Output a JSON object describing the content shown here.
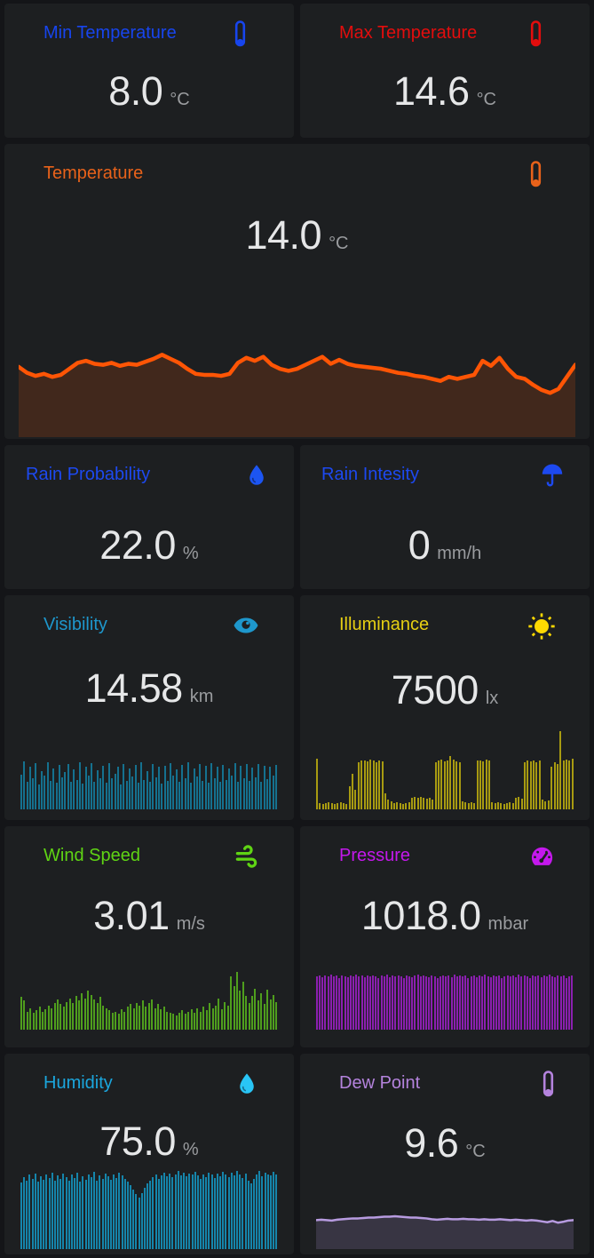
{
  "page": {
    "background": "#141518",
    "card_background": "#1d1f21",
    "value_color": "#e6e7e8",
    "unit_color": "#9a9c9f"
  },
  "cards": [
    {
      "id": "min_temperature",
      "title": "Min Temperature",
      "value": "8.0",
      "unit": "°C",
      "color": "#1745ee",
      "icon": "thermometer"
    },
    {
      "id": "max_temperature",
      "title": "Max Temperature",
      "value": "14.6",
      "unit": "°C",
      "color": "#e30d0d",
      "icon": "thermometer"
    },
    {
      "id": "temperature",
      "title": "Temperature",
      "value": "14.0",
      "unit": "°C",
      "color": "#e8621a",
      "icon": "thermometer",
      "chart": {
        "type": "area",
        "color": "#ff5505",
        "fill_opacity": 0.16,
        "values": [
          70,
          64,
          61,
          63,
          60,
          62,
          68,
          74,
          76,
          73,
          72,
          74,
          71,
          73,
          72,
          75,
          78,
          82,
          78,
          74,
          68,
          63,
          62,
          62,
          61,
          63,
          74,
          79,
          76,
          80,
          72,
          68,
          66,
          68,
          72,
          76,
          80,
          73,
          77,
          73,
          71,
          70,
          69,
          68,
          66,
          64,
          63,
          61,
          60,
          58,
          56,
          60,
          58,
          60,
          62,
          76,
          71,
          79,
          68,
          60,
          58,
          52,
          47,
          44,
          48,
          60,
          72
        ]
      }
    },
    {
      "id": "rain_probability",
      "title": "Rain Probability",
      "value": "22.0",
      "unit": "%",
      "color": "#1d49f0",
      "icon_color": "#1c55f2",
      "icon": "water-drop"
    },
    {
      "id": "rain_intensity",
      "title": "Rain Intesity",
      "value": "0",
      "unit": "mm/h",
      "color": "#1d49f0",
      "icon": "umbrella"
    },
    {
      "id": "visibility",
      "title": "Visibility",
      "value": "14.58",
      "unit": "km",
      "color": "#1e97cc",
      "icon": "eye",
      "chart": {
        "type": "bar",
        "color": "#15718f",
        "values": [
          72,
          100,
          58,
          88,
          64,
          96,
          52,
          80,
          70,
          98,
          60,
          86,
          55,
          92,
          66,
          78,
          95,
          58,
          84,
          62,
          99,
          54,
          88,
          70,
          96,
          58,
          82,
          64,
          90,
          56,
          97,
          65,
          75,
          88,
          52,
          95,
          60,
          85,
          68,
          92,
          55,
          98,
          62,
          80,
          58,
          94,
          66,
          88,
          54,
          90,
          60,
          96,
          70,
          84,
          58,
          92,
          64,
          98,
          56,
          86,
          68,
          94,
          60,
          90,
          55,
          96,
          65,
          88,
          58,
          92,
          62,
          85,
          70,
          97,
          57,
          90,
          64,
          94,
          60,
          87,
          66,
          95,
          58,
          91,
          63,
          89,
          70,
          93
        ]
      }
    },
    {
      "id": "illuminance",
      "title": "Illuminance",
      "value": "7500",
      "unit": "lx",
      "color": "#e6cf13",
      "icon_color": "#fdd902",
      "icon": "sun",
      "chart": {
        "type": "bar",
        "color": "#a89b11",
        "values": [
          65,
          8,
          7,
          8,
          9,
          8,
          7,
          8,
          9,
          8,
          7,
          30,
          45,
          25,
          60,
          62,
          63,
          61,
          64,
          62,
          60,
          63,
          61,
          20,
          12,
          10,
          8,
          9,
          8,
          7,
          8,
          9,
          15,
          16,
          15,
          16,
          15,
          14,
          15,
          13,
          60,
          62,
          64,
          61,
          63,
          68,
          64,
          61,
          60,
          10,
          9,
          8,
          9,
          8,
          62,
          63,
          61,
          64,
          62,
          9,
          8,
          9,
          8,
          7,
          8,
          9,
          8,
          15,
          16,
          14,
          60,
          62,
          61,
          63,
          60,
          62,
          12,
          10,
          11,
          55,
          60,
          58,
          100,
          62,
          64,
          63,
          65
        ]
      }
    },
    {
      "id": "wind_speed",
      "title": "Wind Speed",
      "value": "3.01",
      "unit": "m/s",
      "color": "#5fd414",
      "icon": "wind",
      "chart": {
        "type": "bar",
        "color": "#4f9e1d",
        "values": [
          55,
          48,
          30,
          35,
          28,
          32,
          38,
          30,
          34,
          40,
          36,
          44,
          50,
          42,
          38,
          46,
          52,
          44,
          56,
          48,
          60,
          52,
          64,
          58,
          50,
          44,
          54,
          40,
          36,
          32,
          28,
          30,
          26,
          34,
          30,
          38,
          42,
          36,
          44,
          40,
          48,
          38,
          44,
          50,
          36,
          42,
          34,
          38,
          30,
          28,
          26,
          24,
          28,
          32,
          26,
          30,
          34,
          28,
          36,
          30,
          38,
          32,
          44,
          36,
          40,
          52,
          34,
          46,
          40,
          88,
          72,
          95,
          64,
          80,
          56,
          44,
          56,
          68,
          48,
          60,
          42,
          66,
          50,
          58,
          46
        ]
      }
    },
    {
      "id": "pressure",
      "title": "Pressure",
      "value": "1018.0",
      "unit": "mbar",
      "color": "#c418ec",
      "icon": "gauge",
      "chart": {
        "type": "bar",
        "color": "#8b1fb0",
        "values": [
          96,
          98,
          95,
          99,
          97,
          100,
          96,
          98,
          94,
          99,
          97,
          95,
          98,
          96,
          100,
          97,
          99,
          95,
          98,
          96,
          99,
          97,
          94,
          98,
          96,
          100,
          95,
          99,
          97,
          98,
          96,
          94,
          99,
          97,
          95,
          98,
          100,
          96,
          99,
          97,
          95,
          98,
          96,
          94,
          97,
          99,
          96,
          98,
          95,
          100,
          97,
          99,
          96,
          98,
          94,
          97,
          99,
          95,
          98,
          96,
          100,
          97,
          95,
          99,
          96,
          98,
          94,
          97,
          99,
          96,
          98,
          95,
          100,
          97,
          99,
          96,
          94,
          98,
          97,
          99,
          95,
          98,
          96,
          100,
          97,
          95,
          99,
          96,
          98,
          94,
          97,
          99
        ]
      }
    },
    {
      "id": "humidity",
      "title": "Humidity",
      "value": "75.0",
      "unit": "%",
      "color": "#1ba6dd",
      "icon_color": "#29c5f6",
      "icon": "water-drop",
      "chart": {
        "type": "bar",
        "color": "#1585ab",
        "values": [
          85,
          92,
          88,
          95,
          90,
          97,
          86,
          93,
          89,
          96,
          91,
          98,
          87,
          94,
          90,
          97,
          92,
          88,
          95,
          91,
          98,
          86,
          93,
          89,
          96,
          92,
          99,
          88,
          94,
          90,
          97,
          93,
          89,
          96,
          91,
          98,
          94,
          90,
          86,
          82,
          76,
          70,
          66,
          72,
          78,
          84,
          88,
          92,
          96,
          90,
          94,
          98,
          93,
          97,
          92,
          96,
          100,
          94,
          98,
          93,
          97,
          95,
          99,
          94,
          90,
          96,
          92,
          98,
          95,
          91,
          97,
          93,
          99,
          96,
          92,
          98,
          94,
          100,
          95,
          91,
          97,
          88,
          84,
          90,
          95,
          100,
          93,
          98,
          96,
          94,
          99,
          95
        ]
      }
    },
    {
      "id": "dew_point",
      "title": "Dew Point",
      "value": "9.6",
      "unit": "°C",
      "color": "#b483dd",
      "icon": "thermometer",
      "chart": {
        "type": "area",
        "color": "#b79be0",
        "fill_opacity": 0.18,
        "values": [
          68,
          69,
          68,
          67,
          69,
          70,
          71,
          72,
          72,
          73,
          74,
          74,
          75,
          76,
          76,
          77,
          76,
          75,
          74,
          74,
          73,
          72,
          70,
          69,
          70,
          71,
          70,
          70,
          71,
          70,
          70,
          69,
          70,
          69,
          69,
          70,
          69,
          68,
          69,
          68,
          67,
          68,
          67,
          65,
          63,
          66,
          62,
          64,
          67,
          68
        ]
      }
    }
  ]
}
